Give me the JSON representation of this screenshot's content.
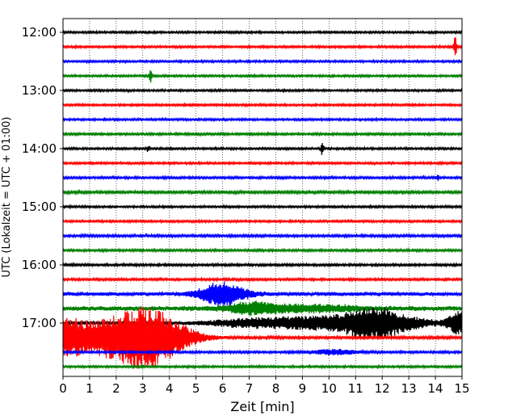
{
  "chart_data": {
    "type": "line",
    "title": "",
    "xlabel": "Zeit  [min]",
    "ylabel": "UTC (Lokalzeit = UTC + 01:00)",
    "xlim": [
      0,
      15
    ],
    "x_ticks": [
      "0",
      "1",
      "2",
      "3",
      "4",
      "5",
      "6",
      "7",
      "8",
      "9",
      "10",
      "11",
      "12",
      "13",
      "14",
      "15"
    ],
    "y_ticks": [
      "12:00",
      "13:00",
      "14:00",
      "15:00",
      "16:00",
      "17:00"
    ],
    "grid": "vertical dotted",
    "colors": [
      "#000000",
      "#ff0000",
      "#0000ff",
      "#008000"
    ],
    "row_minutes": 15,
    "series": [
      {
        "start": "12:00",
        "color": "#000000",
        "level": 1.0,
        "events": []
      },
      {
        "start": "12:15",
        "color": "#ff0000",
        "level": 1.0,
        "events": [
          {
            "t": 14.75,
            "amp": 14
          }
        ]
      },
      {
        "start": "12:30",
        "color": "#0000ff",
        "level": 1.0,
        "events": []
      },
      {
        "start": "12:45",
        "color": "#008000",
        "level": 1.0,
        "events": [
          {
            "t": 3.3,
            "amp": 8
          }
        ]
      },
      {
        "start": "13:00",
        "color": "#000000",
        "level": 1.0,
        "events": []
      },
      {
        "start": "13:15",
        "color": "#ff0000",
        "level": 1.0,
        "events": []
      },
      {
        "start": "13:30",
        "color": "#0000ff",
        "level": 1.0,
        "events": []
      },
      {
        "start": "13:45",
        "color": "#008000",
        "level": 1.1,
        "events": []
      },
      {
        "start": "14:00",
        "color": "#000000",
        "level": 1.0,
        "events": [
          {
            "t": 9.75,
            "amp": 8
          },
          {
            "t": 3.2,
            "amp": 4
          }
        ]
      },
      {
        "start": "14:15",
        "color": "#ff0000",
        "level": 1.0,
        "events": []
      },
      {
        "start": "14:30",
        "color": "#0000ff",
        "level": 1.1,
        "events": [
          {
            "t": 14.1,
            "amp": 3
          }
        ]
      },
      {
        "start": "14:45",
        "color": "#008000",
        "level": 1.3,
        "events": []
      },
      {
        "start": "15:00",
        "color": "#000000",
        "level": 1.0,
        "events": []
      },
      {
        "start": "15:15",
        "color": "#ff0000",
        "level": 1.0,
        "events": []
      },
      {
        "start": "15:30",
        "color": "#0000ff",
        "level": 1.2,
        "events": []
      },
      {
        "start": "15:45",
        "color": "#008000",
        "level": 1.1,
        "events": []
      },
      {
        "start": "16:00",
        "color": "#000000",
        "level": 1.1,
        "events": []
      },
      {
        "start": "16:15",
        "color": "#ff0000",
        "level": 1.1,
        "events": []
      },
      {
        "start": "16:30",
        "color": "#0000ff",
        "level": 1.8,
        "events": [
          {
            "t": 6.0,
            "amp": 14,
            "dur": 0.6
          }
        ]
      },
      {
        "start": "16:45",
        "color": "#008000",
        "level": 2.2,
        "events": [
          {
            "t": 7.0,
            "amp": 5,
            "dur": 0.6
          },
          {
            "t": 9.0,
            "amp": 4,
            "dur": 1.5
          }
        ]
      },
      {
        "start": "17:00",
        "color": "#000000",
        "level": 1.5,
        "events": [
          {
            "t": 7.3,
            "amp": 5,
            "dur": 1.2
          },
          {
            "t": 9.5,
            "amp": 6,
            "dur": 1.0
          },
          {
            "t": 11.5,
            "amp": 14,
            "dur": 0.8
          },
          {
            "t": 12.5,
            "amp": 7,
            "dur": 1.0
          },
          {
            "t": 14.9,
            "amp": 14,
            "dur": 0.3
          }
        ]
      },
      {
        "start": "17:15",
        "color": "#ff0000",
        "level": 1.3,
        "events": [
          {
            "t": 0.1,
            "amp": 16,
            "dur": 0.5
          },
          {
            "t": 1.5,
            "amp": 15,
            "dur": 1.2
          },
          {
            "t": 2.5,
            "amp": 16,
            "dur": 0.8
          },
          {
            "t": 3.3,
            "amp": 12,
            "dur": 0.6
          },
          {
            "t": 4.0,
            "amp": 15,
            "dur": 0.8
          }
        ]
      },
      {
        "start": "17:30",
        "color": "#0000ff",
        "level": 1.1,
        "events": [
          {
            "t": 10.2,
            "amp": 3,
            "dur": 0.6
          }
        ]
      },
      {
        "start": "17:45",
        "color": "#008000",
        "level": 1.0,
        "events": []
      }
    ]
  }
}
